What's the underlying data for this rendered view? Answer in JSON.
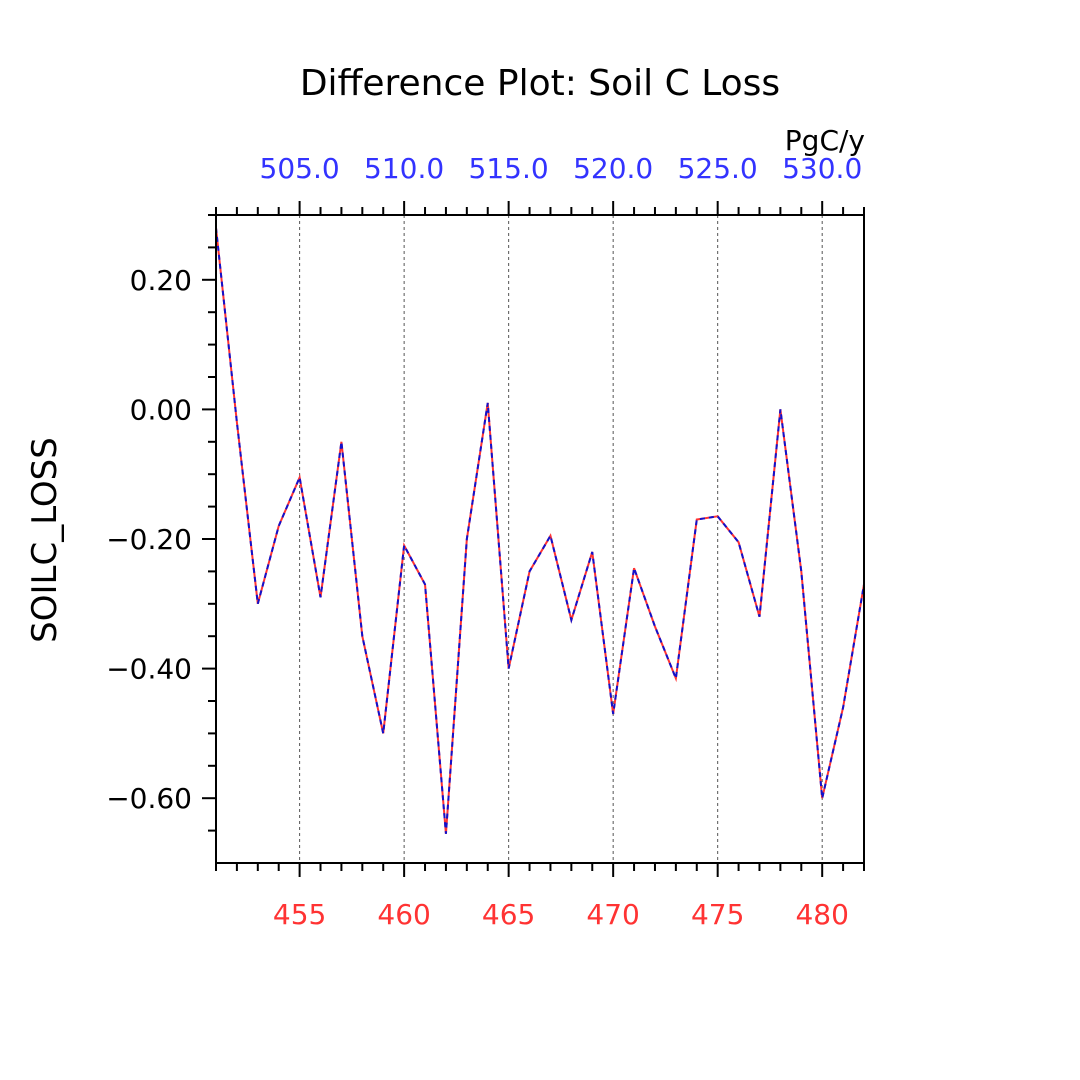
{
  "chart_data": {
    "type": "line",
    "title": "Difference Plot: Soil C Loss",
    "units": "PgC/y",
    "ylabel": "SOILC_LOSS",
    "xlabel": "",
    "xlim": [
      451,
      482
    ],
    "ylim": [
      -0.7,
      0.3
    ],
    "grid": "vertical dashed at major bottom ticks",
    "legend": "none",
    "bottom_axis": {
      "color": "#ff3333",
      "ticks": [
        455,
        460,
        465,
        470,
        475,
        480
      ],
      "tick_labels": [
        "455",
        "460",
        "465",
        "470",
        "475",
        "480"
      ]
    },
    "top_axis": {
      "color": "#3333ff",
      "ticks": [
        455,
        460,
        465,
        470,
        475,
        480
      ],
      "tick_labels": [
        "505.0",
        "510.0",
        "515.0",
        "520.0",
        "525.0",
        "530.0"
      ]
    },
    "yticks": [
      0.2,
      0.0,
      -0.2,
      -0.4,
      -0.6
    ],
    "ytick_labels": [
      "0.20",
      "0.00",
      "−0.20",
      "−0.40",
      "−0.60"
    ],
    "x": [
      451,
      452,
      453,
      454,
      455,
      456,
      457,
      458,
      459,
      460,
      461,
      462,
      463,
      464,
      465,
      466,
      467,
      468,
      469,
      470,
      471,
      472,
      473,
      474,
      475,
      476,
      477,
      478,
      479,
      480,
      481,
      482
    ],
    "series": [
      {
        "color": "#ff3333",
        "dash": "solid",
        "values": [
          0.28,
          -0.02,
          -0.3,
          -0.18,
          -0.105,
          -0.29,
          -0.05,
          -0.35,
          -0.5,
          -0.21,
          -0.27,
          -0.655,
          -0.2,
          0.01,
          -0.4,
          -0.25,
          -0.195,
          -0.325,
          -0.22,
          -0.47,
          -0.245,
          -0.335,
          -0.415,
          -0.17,
          -0.165,
          -0.205,
          -0.32,
          0.0,
          -0.25,
          -0.6,
          -0.46,
          -0.27
        ]
      },
      {
        "color": "#1111cc",
        "dash": "dashed",
        "values": [
          0.28,
          -0.02,
          -0.3,
          -0.18,
          -0.105,
          -0.29,
          -0.05,
          -0.35,
          -0.5,
          -0.21,
          -0.27,
          -0.655,
          -0.2,
          0.01,
          -0.4,
          -0.25,
          -0.195,
          -0.325,
          -0.22,
          -0.47,
          -0.245,
          -0.335,
          -0.415,
          -0.17,
          -0.165,
          -0.205,
          -0.32,
          0.0,
          -0.25,
          -0.6,
          -0.46,
          -0.27
        ]
      }
    ]
  }
}
